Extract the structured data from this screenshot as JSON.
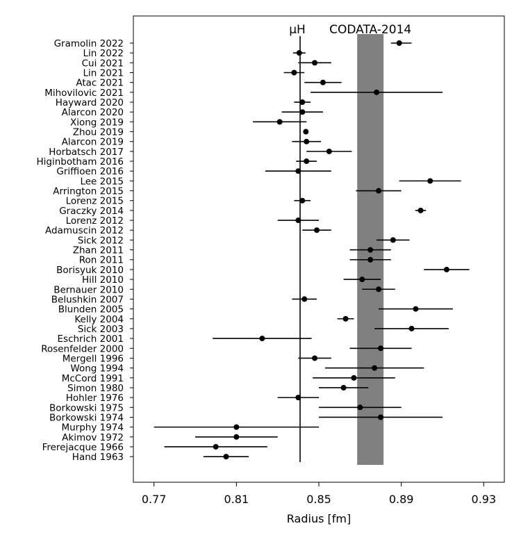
{
  "chart_data": {
    "type": "scatter",
    "xlabel": "Radius [fm]",
    "ylabel": "",
    "xlim": [
      0.76,
      0.94
    ],
    "xticks": [
      "0.77",
      "0.81",
      "0.85",
      "0.89",
      "0.93"
    ],
    "grid": false,
    "legend": "none",
    "reference_line": {
      "label": "μH",
      "x": 0.8409
    },
    "reference_band": {
      "label": "CODATA-2014",
      "x_from": 0.8686,
      "x_to": 0.8814,
      "color": "#808080"
    },
    "points": [
      {
        "label": "Gramolin 2022",
        "x": 0.889,
        "err_lo": 0.004,
        "err_hi": 0.006
      },
      {
        "label": "Lin 2022",
        "x": 0.8405,
        "err_lo": 0.003,
        "err_hi": 0.003
      },
      {
        "label": "Cui 2021",
        "x": 0.848,
        "err_lo": 0.008,
        "err_hi": 0.008
      },
      {
        "label": "Lin 2021",
        "x": 0.838,
        "err_lo": 0.005,
        "err_hi": 0.005
      },
      {
        "label": "Atac 2021",
        "x": 0.852,
        "err_lo": 0.009,
        "err_hi": 0.009
      },
      {
        "label": "Mihovilovic 2021",
        "x": 0.878,
        "err_lo": 0.032,
        "err_hi": 0.032
      },
      {
        "label": "Hayward 2020",
        "x": 0.842,
        "err_lo": 0.004,
        "err_hi": 0.004
      },
      {
        "label": "Alarcon 2020",
        "x": 0.842,
        "err_lo": 0.01,
        "err_hi": 0.01
      },
      {
        "label": "Xiong 2019",
        "x": 0.831,
        "err_lo": 0.013,
        "err_hi": 0.013
      },
      {
        "label": "Zhou 2019",
        "x": 0.8437,
        "err_lo": 0,
        "err_hi": 0
      },
      {
        "label": "Alarcon 2019",
        "x": 0.844,
        "err_lo": 0.007,
        "err_hi": 0.007
      },
      {
        "label": "Horbatsch 2017",
        "x": 0.855,
        "err_lo": 0.011,
        "err_hi": 0.011
      },
      {
        "label": "Higinbotham 2016",
        "x": 0.844,
        "err_lo": 0.005,
        "err_hi": 0.005
      },
      {
        "label": "Griffioen 2016",
        "x": 0.84,
        "err_lo": 0.016,
        "err_hi": 0.016
      },
      {
        "label": "Lee 2015",
        "x": 0.904,
        "err_lo": 0.015,
        "err_hi": 0.015
      },
      {
        "label": "Arrington 2015",
        "x": 0.879,
        "err_lo": 0.011,
        "err_hi": 0.011
      },
      {
        "label": "Lorenz 2015",
        "x": 0.842,
        "err_lo": 0.004,
        "err_hi": 0.004
      },
      {
        "label": "Graczky 2014",
        "x": 0.8994,
        "err_lo": 0.0026,
        "err_hi": 0.0026
      },
      {
        "label": "Lorenz 2012",
        "x": 0.84,
        "err_lo": 0.01,
        "err_hi": 0.01
      },
      {
        "label": "Adamuscin 2012",
        "x": 0.849,
        "err_lo": 0.007,
        "err_hi": 0.007
      },
      {
        "label": "Sick 2012",
        "x": 0.886,
        "err_lo": 0.008,
        "err_hi": 0.008
      },
      {
        "label": "Zhan 2011",
        "x": 0.875,
        "err_lo": 0.01,
        "err_hi": 0.01
      },
      {
        "label": "Ron 2011",
        "x": 0.875,
        "err_lo": 0.01,
        "err_hi": 0.01
      },
      {
        "label": "Borisyuk 2010",
        "x": 0.912,
        "err_lo": 0.011,
        "err_hi": 0.011
      },
      {
        "label": "Hill 2010",
        "x": 0.871,
        "err_lo": 0.009,
        "err_hi": 0.009
      },
      {
        "label": "Bernauer 2010",
        "x": 0.879,
        "err_lo": 0.008,
        "err_hi": 0.008
      },
      {
        "label": "Belushkin 2007",
        "x": 0.843,
        "err_lo": 0.006,
        "err_hi": 0.006
      },
      {
        "label": "Blunden 2005",
        "x": 0.897,
        "err_lo": 0.018,
        "err_hi": 0.018
      },
      {
        "label": "Kelly 2004",
        "x": 0.863,
        "err_lo": 0.004,
        "err_hi": 0.004
      },
      {
        "label": "Sick 2003",
        "x": 0.895,
        "err_lo": 0.018,
        "err_hi": 0.018
      },
      {
        "label": "Eschrich 2001",
        "x": 0.8225,
        "err_lo": 0.024,
        "err_hi": 0.024
      },
      {
        "label": "Rosenfelder 2000",
        "x": 0.88,
        "err_lo": 0.015,
        "err_hi": 0.015
      },
      {
        "label": "Mergell 1996",
        "x": 0.848,
        "err_lo": 0.008,
        "err_hi": 0.008
      },
      {
        "label": "Wong 1994",
        "x": 0.877,
        "err_lo": 0.024,
        "err_hi": 0.024
      },
      {
        "label": "McCord 1991",
        "x": 0.867,
        "err_lo": 0.02,
        "err_hi": 0.02
      },
      {
        "label": "Simon 1980",
        "x": 0.862,
        "err_lo": 0.012,
        "err_hi": 0.012
      },
      {
        "label": "Hohler 1976",
        "x": 0.84,
        "err_lo": 0.01,
        "err_hi": 0.01
      },
      {
        "label": "Borkowski 1975",
        "x": 0.87,
        "err_lo": 0.02,
        "err_hi": 0.02
      },
      {
        "label": "Borkowski 1974",
        "x": 0.88,
        "err_lo": 0.03,
        "err_hi": 0.03
      },
      {
        "label": "Murphy 1974",
        "x": 0.81,
        "err_lo": 0.04,
        "err_hi": 0.04
      },
      {
        "label": "Akimov 1972",
        "x": 0.81,
        "err_lo": 0.02,
        "err_hi": 0.02
      },
      {
        "label": "Frerejacque 1966",
        "x": 0.8,
        "err_lo": 0.025,
        "err_hi": 0.025
      },
      {
        "label": "Hand 1963",
        "x": 0.805,
        "err_lo": 0.011,
        "err_hi": 0.011
      }
    ]
  }
}
